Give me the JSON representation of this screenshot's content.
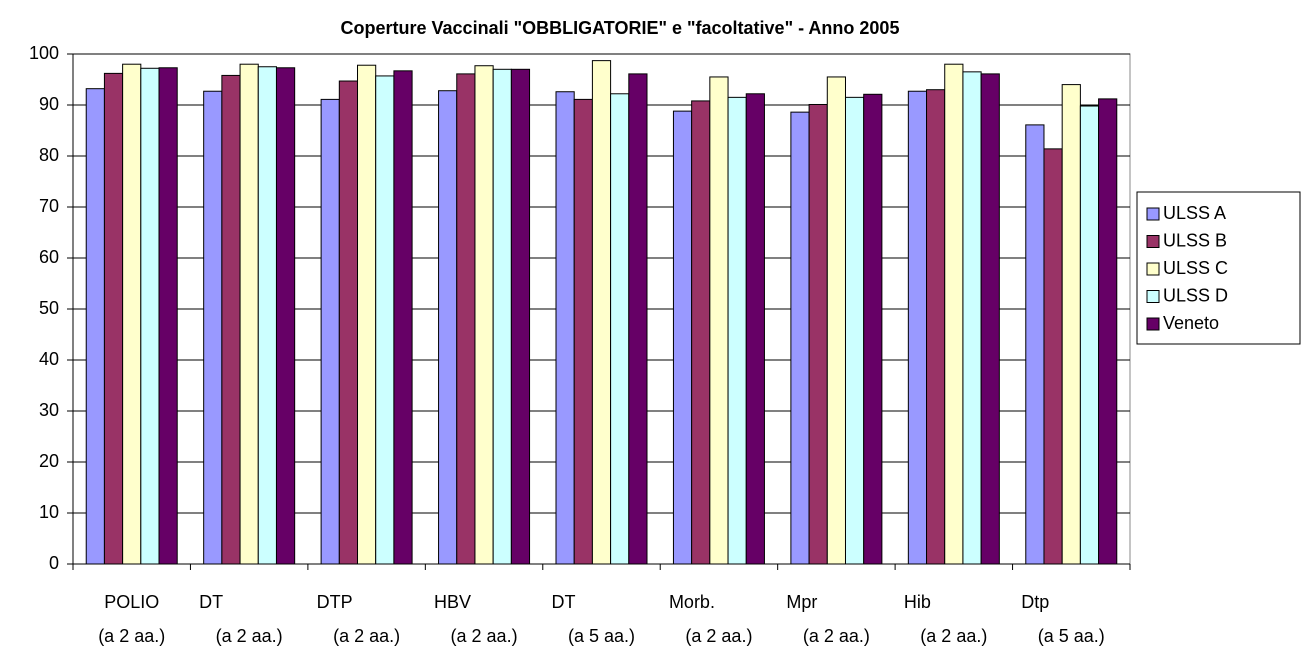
{
  "chart_data": {
    "type": "bar",
    "title": "Coperture Vaccinali \"OBBLIGATORIE\" e \"facoltative\" - Anno 2005",
    "categories": [
      [
        "POLIO",
        "(a 2 aa.)"
      ],
      [
        "DT",
        "(a 2 aa.)"
      ],
      [
        "DTP",
        "(a 2 aa.)"
      ],
      [
        "HBV",
        "(a 2 aa.)"
      ],
      [
        "DT",
        "(a 5 aa.)"
      ],
      [
        "Morb.",
        "(a 2 aa.)"
      ],
      [
        "Mpr",
        "(a 2 aa.)"
      ],
      [
        "Hib",
        "(a 2 aa.)"
      ],
      [
        "Dtp",
        "(a 5 aa.)"
      ]
    ],
    "series": [
      {
        "name": "ULSS A",
        "color": "#9999ff",
        "values": [
          93.2,
          92.7,
          91.1,
          92.8,
          92.6,
          88.8,
          88.6,
          92.7,
          86.1
        ]
      },
      {
        "name": "ULSS B",
        "color": "#993366",
        "values": [
          96.2,
          95.8,
          94.7,
          96.1,
          91.1,
          90.8,
          90.1,
          93.0,
          81.4
        ]
      },
      {
        "name": "ULSS C",
        "color": "#ffffcc",
        "values": [
          98.0,
          98.0,
          97.8,
          97.7,
          98.7,
          95.5,
          95.5,
          98.0,
          94.0
        ]
      },
      {
        "name": "ULSS D",
        "color": "#ccffff",
        "values": [
          97.2,
          97.5,
          95.7,
          97.0,
          92.2,
          91.5,
          91.5,
          96.5,
          89.8
        ]
      },
      {
        "name": "Veneto",
        "color": "#660066",
        "values": [
          97.3,
          97.3,
          96.7,
          97.0,
          96.1,
          92.2,
          92.1,
          96.1,
          91.2
        ]
      }
    ],
    "ylim": [
      0,
      100
    ],
    "yticks": [
      0,
      10,
      20,
      30,
      40,
      50,
      60,
      70,
      80,
      90,
      100
    ],
    "grid": true,
    "legend": "right"
  }
}
